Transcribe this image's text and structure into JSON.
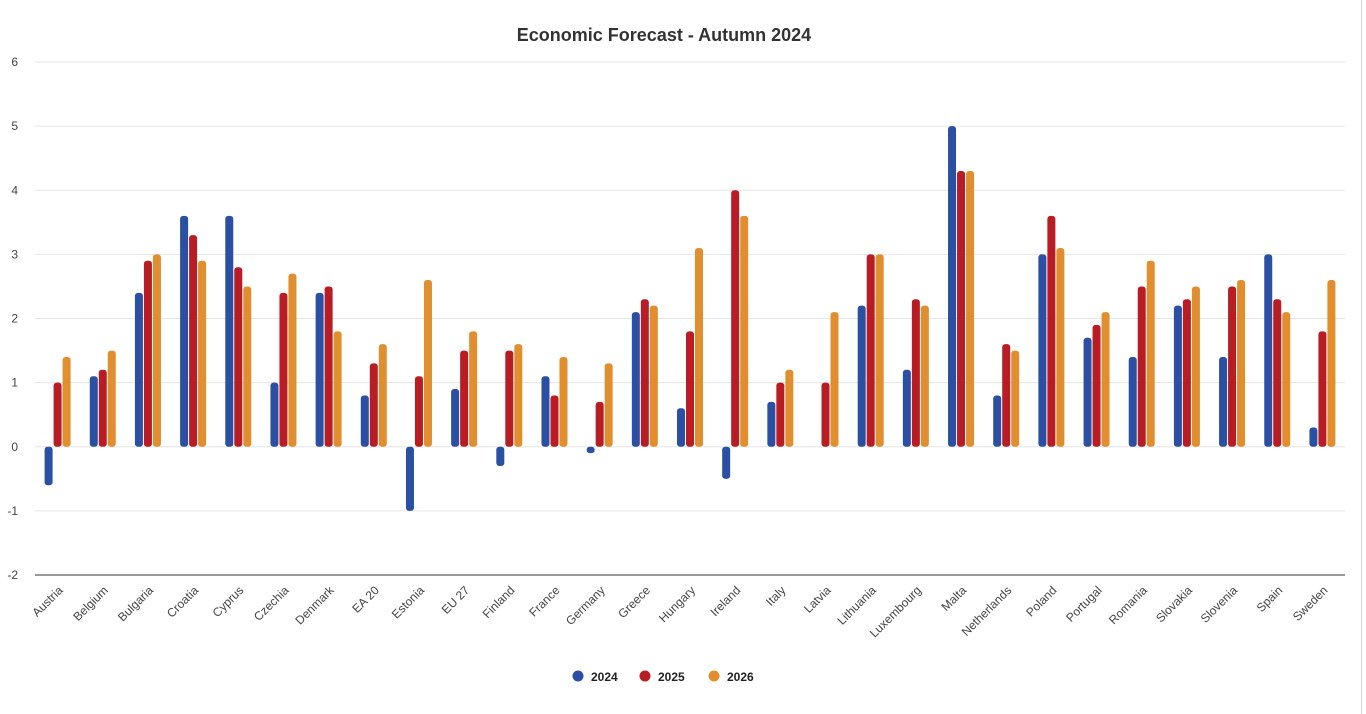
{
  "chart_data": {
    "type": "bar",
    "title": "Economic Forecast - Autumn 2024",
    "xlabel": "",
    "ylabel": "",
    "ylim": [
      -2,
      6
    ],
    "yticks": [
      -2,
      -1,
      0,
      1,
      2,
      3,
      4,
      5,
      6
    ],
    "grid": true,
    "legend_position": "bottom-center",
    "categories": [
      "Austria",
      "Belgium",
      "Bulgaria",
      "Croatia",
      "Cyprus",
      "Czechia",
      "Denmark",
      "EA 20",
      "Estonia",
      "EU 27",
      "Finland",
      "France",
      "Germany",
      "Greece",
      "Hungary",
      "Ireland",
      "Italy",
      "Latvia",
      "Lithuania",
      "Luxembourg",
      "Malta",
      "Netherlands",
      "Poland",
      "Portugal",
      "Romania",
      "Slovakia",
      "Slovenia",
      "Spain",
      "Sweden"
    ],
    "series": [
      {
        "name": "2024",
        "color": "#2b4fa3",
        "values": [
          -0.6,
          1.1,
          2.4,
          3.6,
          3.6,
          1.0,
          2.4,
          0.8,
          -1.0,
          0.9,
          -0.3,
          1.1,
          -0.1,
          2.1,
          0.6,
          -0.5,
          0.7,
          0.0,
          2.2,
          1.2,
          5.0,
          0.8,
          3.0,
          1.7,
          1.4,
          2.2,
          1.4,
          3.0,
          0.3
        ]
      },
      {
        "name": "2025",
        "color": "#b81c24",
        "values": [
          1.0,
          1.2,
          2.9,
          3.3,
          2.8,
          2.4,
          2.5,
          1.3,
          1.1,
          1.5,
          1.5,
          0.8,
          0.7,
          2.3,
          1.8,
          4.0,
          1.0,
          1.0,
          3.0,
          2.3,
          4.3,
          1.6,
          3.6,
          1.9,
          2.5,
          2.3,
          2.5,
          2.3,
          1.8
        ]
      },
      {
        "name": "2026",
        "color": "#e08e2e",
        "values": [
          1.4,
          1.5,
          3.0,
          2.9,
          2.5,
          2.7,
          1.8,
          1.6,
          2.6,
          1.8,
          1.6,
          1.4,
          1.3,
          2.2,
          3.1,
          3.6,
          1.2,
          2.1,
          3.0,
          2.2,
          4.3,
          1.5,
          3.1,
          2.1,
          2.9,
          2.5,
          2.6,
          2.1,
          2.6
        ]
      }
    ]
  }
}
